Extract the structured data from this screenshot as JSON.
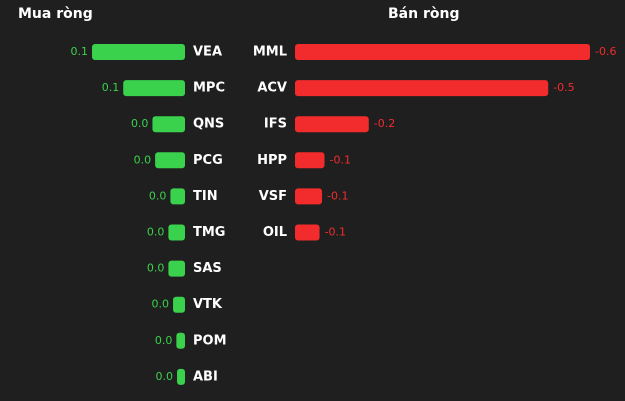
{
  "chart_data": [
    {
      "type": "bar",
      "title": "Mua ròng",
      "color": "#3ad14c",
      "categories": [
        "VEA",
        "MPC",
        "QNS",
        "PCG",
        "TIN",
        "TMG",
        "SAS",
        "VTK",
        "POM",
        "ABI"
      ],
      "values": [
        0.14,
        0.093,
        0.049,
        0.045,
        0.022,
        0.025,
        0.025,
        0.018,
        0.013,
        0.012
      ],
      "value_labels": [
        "0.1",
        "0.1",
        "0.0",
        "0.0",
        "0.0",
        "0.0",
        "0.0",
        "0.0",
        "0.0",
        "0.0"
      ]
    },
    {
      "type": "bar",
      "title": "Bán ròng",
      "color": "#f22c2c",
      "categories": [
        "MML",
        "ACV",
        "IFS",
        "HPP",
        "VSF",
        "OIL"
      ],
      "values": [
        -0.6,
        -0.515,
        -0.15,
        -0.06,
        -0.055,
        -0.05
      ],
      "value_labels": [
        "-0.6",
        "-0.5",
        "-0.2",
        "-0.1",
        "-0.1",
        "-0.1"
      ]
    }
  ]
}
